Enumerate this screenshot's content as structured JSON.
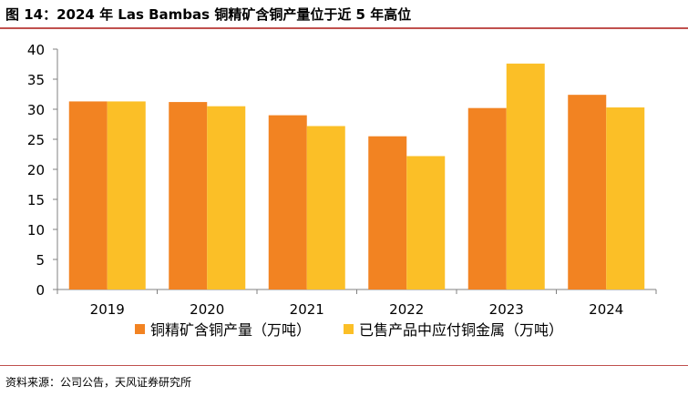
{
  "title": "图 14：2024 年 Las Bambas 铜精矿含铜产量位于近 5 年高位",
  "source": "资料来源：公司公告，天风证券研究所",
  "chart_data": {
    "type": "bar",
    "categories": [
      "2019",
      "2020",
      "2021",
      "2022",
      "2023",
      "2024"
    ],
    "series": [
      {
        "name": "铜精矿含铜产量（万吨）",
        "color": "#f28322",
        "values": [
          31.3,
          31.2,
          29.0,
          25.5,
          30.2,
          32.4
        ]
      },
      {
        "name": "已售产品中应付铜金属（万吨）",
        "color": "#fbbf27",
        "values": [
          31.3,
          30.5,
          27.2,
          22.2,
          37.6,
          30.3
        ]
      }
    ],
    "ylim": [
      0,
      40
    ],
    "yticks": [
      "0",
      "5",
      "10",
      "15",
      "20",
      "25",
      "30",
      "35",
      "40"
    ],
    "xlabel": "",
    "ylabel": "",
    "grid": false,
    "legend": "bottom"
  }
}
